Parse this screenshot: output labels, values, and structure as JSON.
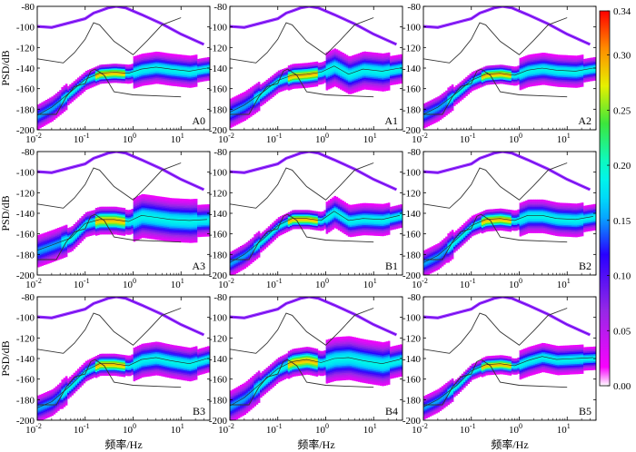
{
  "chart_data": {
    "type": "psd-heatmap",
    "xlabel": "频率/Hz",
    "ylabel": "PSD/dB",
    "x_scale": "log",
    "xlim": [
      0.01,
      40
    ],
    "ylim": [
      -200,
      -80
    ],
    "yticks": [
      -80,
      -100,
      -120,
      -140,
      -160,
      -180,
      -200
    ],
    "xticks": [
      {
        "base": "10",
        "exp": "-2",
        "value": 0.01
      },
      {
        "base": "10",
        "exp": "-1",
        "value": 0.1
      },
      {
        "base": "10",
        "exp": "0",
        "value": 1
      },
      {
        "base": "10",
        "exp": "1",
        "value": 10
      }
    ],
    "nhnm": {
      "name": "NHNM",
      "x": [
        0.01,
        0.02,
        0.1,
        0.15,
        0.2,
        0.3,
        0.45,
        0.7,
        1.5,
        4,
        10,
        30
      ],
      "y": [
        -99.5,
        -100.5,
        -92,
        -86.5,
        -84.5,
        -81.5,
        -80,
        -81.5,
        -88,
        -97,
        -107,
        -117
      ]
    },
    "nlnm": {
      "name": "NLNM",
      "x": [
        0.01,
        0.025,
        0.04,
        0.06,
        0.1,
        0.13,
        0.16,
        0.25,
        0.4,
        1,
        3,
        10
      ],
      "y": [
        -185,
        -185,
        -168,
        -158,
        -155,
        -143,
        -141,
        -147,
        -163,
        -166,
        -167,
        -168
      ]
    },
    "upper_line": {
      "x": [
        0.01,
        0.035,
        0.06,
        0.1,
        0.15,
        0.2,
        0.4,
        1,
        2,
        4,
        10
      ],
      "y": [
        -131,
        -135,
        -125,
        -112,
        -96,
        -98,
        -114,
        -127,
        -113,
        -98,
        -91
      ]
    },
    "colorbar": {
      "min": 0,
      "max": 0.34,
      "ticks": [
        "0.34",
        "0.30",
        "0.25",
        "0.20",
        "0.15",
        "0.10",
        "0.05",
        "0.00"
      ],
      "colors": [
        "#ff0000",
        "#ff8c00",
        "#ffff00",
        "#00dd00",
        "#00ffff",
        "#0000ff",
        "#8a2be2",
        "#ff00ff",
        "#ffffff"
      ]
    },
    "panels": [
      {
        "label": "A0",
        "mode": [
          -186,
          -178,
          -163,
          -151,
          -145,
          -144,
          -145,
          -141,
          -139,
          -141,
          -143,
          -140
        ],
        "spread": 1.0
      },
      {
        "label": "A1",
        "mode": [
          -183,
          -176,
          -163,
          -152,
          -147,
          -146,
          -144,
          -138,
          -146,
          -141,
          -143,
          -140
        ],
        "spread": 1.2
      },
      {
        "label": "A2",
        "mode": [
          -185,
          -178,
          -164,
          -152,
          -146,
          -145,
          -147,
          -142,
          -140,
          -142,
          -143,
          -140
        ],
        "spread": 1.0
      },
      {
        "label": "A3",
        "mode": [
          -176,
          -171,
          -164,
          -150,
          -146,
          -146,
          -148,
          -142,
          -144,
          -146,
          -147,
          -146
        ],
        "spread": 1.4
      },
      {
        "label": "B1",
        "mode": [
          -188,
          -180,
          -165,
          -152,
          -145,
          -145,
          -147,
          -138,
          -147,
          -145,
          -146,
          -142
        ],
        "spread": 1.0
      },
      {
        "label": "B2",
        "mode": [
          -188,
          -181,
          -165,
          -152,
          -146,
          -145,
          -147,
          -142,
          -142,
          -145,
          -146,
          -143
        ],
        "spread": 1.1
      },
      {
        "label": "B3",
        "mode": [
          -188,
          -182,
          -166,
          -152,
          -145,
          -145,
          -147,
          -141,
          -139,
          -142,
          -145,
          -140
        ],
        "spread": 1.1
      },
      {
        "label": "B4",
        "mode": [
          -186,
          -178,
          -162,
          -150,
          -143,
          -141,
          -144,
          -140,
          -139,
          -142,
          -145,
          -141
        ],
        "spread": 1.4
      },
      {
        "label": "B5",
        "mode": [
          -187,
          -180,
          -166,
          -152,
          -146,
          -145,
          -147,
          -142,
          -138,
          -141,
          -140,
          -139
        ],
        "spread": 0.9
      }
    ]
  }
}
